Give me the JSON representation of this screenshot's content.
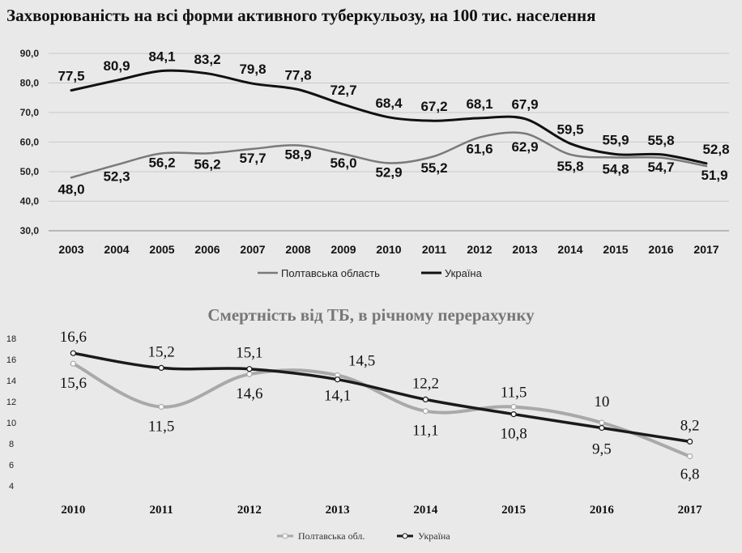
{
  "chart_data": [
    {
      "type": "line",
      "title": "Захворюваність на всі форми активного туберкульозу, на 100 тис. населення",
      "categories": [
        "2003",
        "2004",
        "2005",
        "2006",
        "2007",
        "2008",
        "2009",
        "2010",
        "2011",
        "2012",
        "2013",
        "2014",
        "2015",
        "2016",
        "2017"
      ],
      "y_ticks": [
        "30,0",
        "40,0",
        "50,0",
        "60,0",
        "70,0",
        "80,0",
        "90,0"
      ],
      "ylim": [
        30,
        90
      ],
      "grid": true,
      "legend_position": "bottom",
      "series": [
        {
          "name": "Полтавська область",
          "color": "#7a7a7a",
          "values": [
            48.0,
            52.3,
            56.2,
            56.2,
            57.7,
            58.9,
            56.0,
            52.9,
            55.2,
            61.6,
            62.9,
            55.8,
            54.8,
            54.7,
            51.9
          ],
          "labels": [
            "48,0",
            "52,3",
            "56,2",
            "56,2",
            "57,7",
            "58,9",
            "56,0",
            "52,9",
            "55,2",
            "61,6",
            "62,9",
            "55,8",
            "54,8",
            "54,7",
            "51,9"
          ]
        },
        {
          "name": "Україна",
          "color": "#111111",
          "values": [
            77.5,
            80.9,
            84.1,
            83.2,
            79.8,
            77.8,
            72.7,
            68.4,
            67.2,
            68.1,
            67.9,
            59.5,
            55.9,
            55.8,
            52.8
          ],
          "labels": [
            "77,5",
            "80,9",
            "84,1",
            "83,2",
            "79,8",
            "77,8",
            "72,7",
            "68,4",
            "67,2",
            "68,1",
            "67,9",
            "59,5",
            "55,9",
            "55,8",
            "52,8"
          ]
        }
      ]
    },
    {
      "type": "line",
      "title": "Смертність від ТБ, в річному перерахунку",
      "categories": [
        "2010",
        "2011",
        "2012",
        "2013",
        "2014",
        "2015",
        "2016",
        "2017"
      ],
      "y_ticks": [
        "4",
        "6",
        "8",
        "10",
        "12",
        "14",
        "16",
        "18"
      ],
      "ylim": [
        4,
        18
      ],
      "grid": false,
      "legend_position": "bottom",
      "series": [
        {
          "name": "Полтавська обл.",
          "color": "#a9a9a9",
          "values": [
            15.6,
            11.5,
            14.6,
            14.5,
            11.1,
            11.5,
            10,
            6.8
          ],
          "labels": [
            "15,6",
            "11,5",
            "14,6",
            "14,5",
            "11,1",
            "11,5",
            "10",
            "6,8"
          ]
        },
        {
          "name": "Україна",
          "color": "#1a1a1a",
          "values": [
            16.6,
            15.2,
            15.1,
            14.1,
            12.2,
            10.8,
            9.5,
            8.2
          ],
          "labels": [
            "16,6",
            "15,2",
            "15,1",
            "14,1",
            "12,2",
            "10,8",
            "9,5",
            "8,2"
          ]
        }
      ]
    }
  ]
}
